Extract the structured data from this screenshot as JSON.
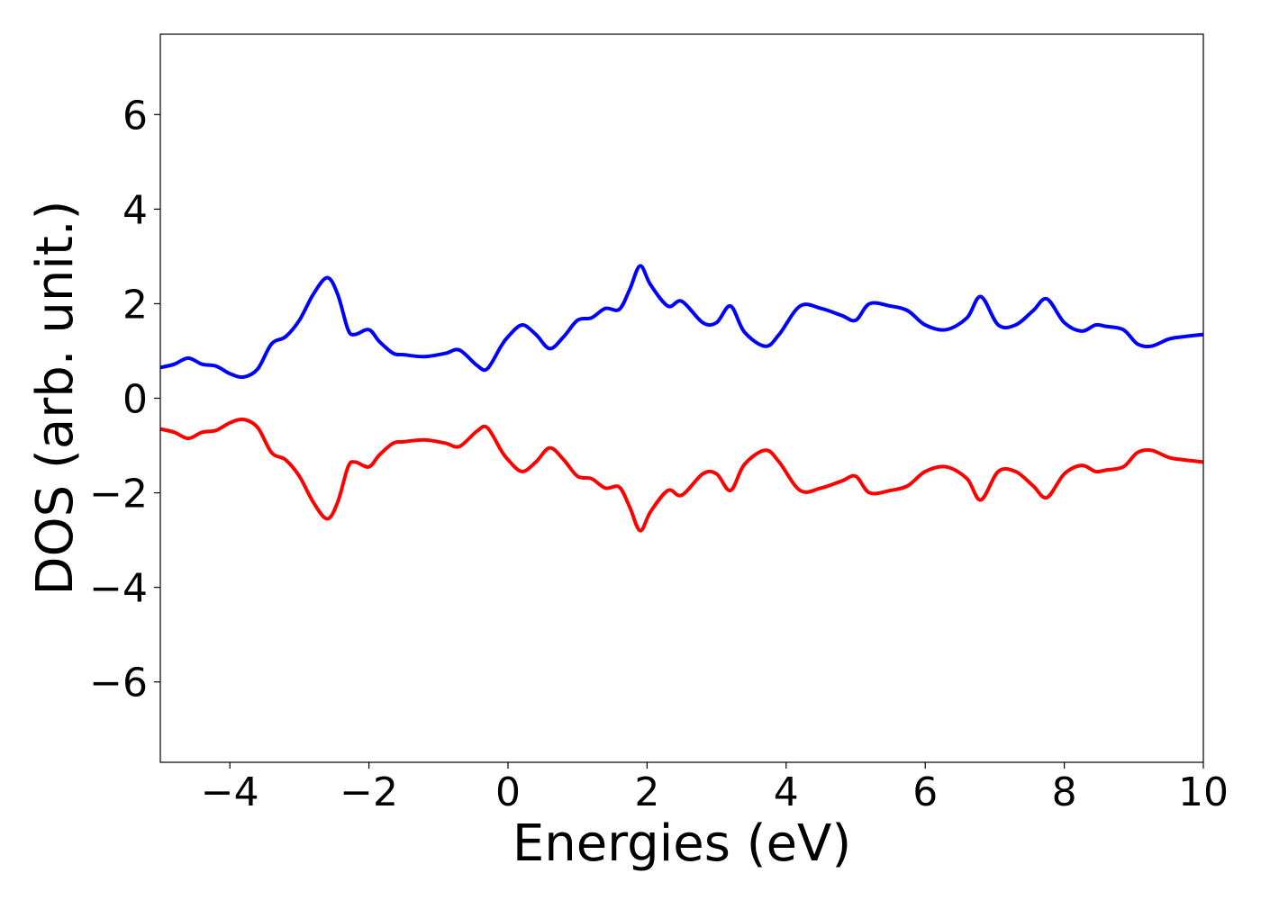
{
  "chart_data": {
    "type": "line",
    "title": "",
    "xlabel": "Energies (eV)",
    "ylabel": "DOS (arb. unit.)",
    "xlim": [
      -5,
      10
    ],
    "ylim": [
      -7.7,
      7.7
    ],
    "x_ticks": [
      -4,
      -2,
      0,
      2,
      4,
      6,
      8,
      10
    ],
    "x_tick_labels": [
      "−4",
      "−2",
      "0",
      "2",
      "4",
      "6",
      "8",
      "10"
    ],
    "y_ticks": [
      -6,
      -4,
      -2,
      0,
      2,
      4,
      6
    ],
    "y_tick_labels": [
      "−6",
      "−4",
      "−2",
      "0",
      "2",
      "4",
      "6"
    ],
    "grid": false,
    "legend": "none",
    "x": [
      -5.0,
      -4.8,
      -4.6,
      -4.4,
      -4.2,
      -4.0,
      -3.8,
      -3.6,
      -3.4,
      -3.2,
      -3.0,
      -2.8,
      -2.6,
      -2.45,
      -2.3,
      -2.2,
      -2.0,
      -1.85,
      -1.65,
      -1.5,
      -1.2,
      -0.9,
      -0.7,
      -0.45,
      -0.3,
      -0.1,
      0.0,
      0.2,
      0.4,
      0.6,
      0.8,
      1.0,
      1.2,
      1.4,
      1.6,
      1.75,
      1.9,
      2.05,
      2.3,
      2.5,
      2.8,
      3.0,
      3.2,
      3.4,
      3.7,
      3.9,
      4.2,
      4.5,
      4.8,
      5.0,
      5.2,
      5.5,
      5.75,
      6.0,
      6.3,
      6.6,
      6.8,
      7.05,
      7.3,
      7.55,
      7.75,
      8.0,
      8.25,
      8.45,
      8.6,
      8.85,
      9.05,
      9.25,
      9.5,
      9.7,
      10.0
    ],
    "series": [
      {
        "color": "#0000ff",
        "values": [
          0.65,
          0.72,
          0.85,
          0.72,
          0.68,
          0.52,
          0.45,
          0.62,
          1.15,
          1.3,
          1.65,
          2.2,
          2.55,
          2.2,
          1.45,
          1.35,
          1.45,
          1.2,
          0.95,
          0.92,
          0.88,
          0.95,
          1.02,
          0.7,
          0.62,
          1.1,
          1.3,
          1.55,
          1.35,
          1.05,
          1.3,
          1.65,
          1.7,
          1.9,
          1.88,
          2.3,
          2.8,
          2.4,
          1.95,
          2.05,
          1.6,
          1.6,
          1.95,
          1.4,
          1.1,
          1.35,
          1.95,
          1.9,
          1.75,
          1.65,
          2.0,
          1.95,
          1.85,
          1.55,
          1.45,
          1.7,
          2.15,
          1.55,
          1.55,
          1.85,
          2.1,
          1.6,
          1.42,
          1.55,
          1.52,
          1.45,
          1.15,
          1.1,
          1.25,
          1.3,
          1.35
        ]
      },
      {
        "color": "#ff0000",
        "values": [
          -0.65,
          -0.72,
          -0.85,
          -0.72,
          -0.68,
          -0.52,
          -0.45,
          -0.62,
          -1.15,
          -1.3,
          -1.65,
          -2.2,
          -2.55,
          -2.2,
          -1.45,
          -1.35,
          -1.45,
          -1.2,
          -0.95,
          -0.92,
          -0.88,
          -0.95,
          -1.02,
          -0.7,
          -0.62,
          -1.1,
          -1.3,
          -1.55,
          -1.35,
          -1.05,
          -1.3,
          -1.65,
          -1.7,
          -1.9,
          -1.88,
          -2.3,
          -2.8,
          -2.4,
          -1.95,
          -2.05,
          -1.6,
          -1.6,
          -1.95,
          -1.4,
          -1.1,
          -1.35,
          -1.95,
          -1.9,
          -1.75,
          -1.65,
          -2.0,
          -1.95,
          -1.85,
          -1.55,
          -1.45,
          -1.7,
          -2.15,
          -1.55,
          -1.55,
          -1.85,
          -2.1,
          -1.6,
          -1.42,
          -1.55,
          -1.52,
          -1.45,
          -1.15,
          -1.1,
          -1.25,
          -1.3,
          -1.35
        ]
      }
    ]
  }
}
